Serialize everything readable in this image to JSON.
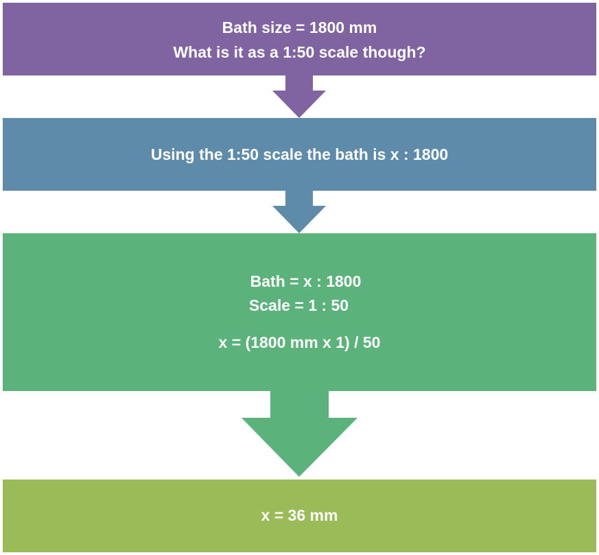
{
  "steps": [
    {
      "color": "#8064A2",
      "lines": [
        "Bath size = 1800 mm",
        "What is it as a 1:50 scale though?"
      ]
    },
    {
      "color": "#5F8BAB",
      "lines": [
        "Using the 1:50 scale the bath is x : 1800"
      ]
    },
    {
      "color": "#5BB27A",
      "lines": [
        "Bath = x : 1800",
        "Scale = 1 : 50",
        "x = (1800 mm  x 1) / 50"
      ]
    },
    {
      "color": "#9BBB59",
      "lines": [
        "x = 36 mm"
      ]
    }
  ]
}
